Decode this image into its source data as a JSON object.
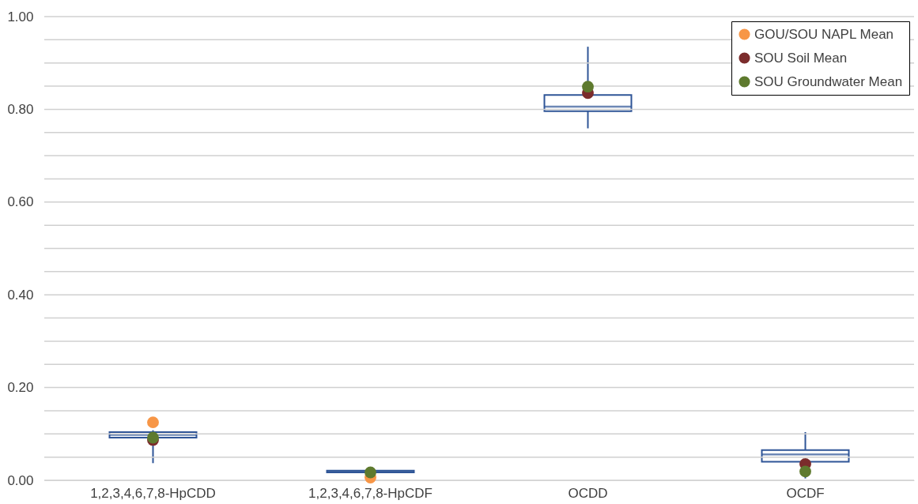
{
  "chart_data": {
    "type": "box",
    "categories": [
      "1,2,3,4,6,7,8-HpCDD",
      "1,2,3,4,6,7,8-HpCDF",
      "OCDD",
      "OCDF"
    ],
    "color": "#2f5597",
    "boxes": [
      {
        "low": 0.037,
        "q1": 0.092,
        "median": 0.098,
        "q3": 0.104,
        "high": 0.108
      },
      {
        "low": 0.016,
        "q1": 0.017,
        "median": 0.019,
        "q3": 0.021,
        "high": 0.022
      },
      {
        "low": 0.759,
        "q1": 0.796,
        "median": 0.806,
        "q3": 0.831,
        "high": 0.935
      },
      {
        "low": 0.004,
        "q1": 0.04,
        "median": 0.056,
        "q3": 0.065,
        "high": 0.104
      }
    ],
    "series": [
      {
        "name": "GOU/SOU NAPL Mean",
        "type": "scatter",
        "color": "#f79646",
        "x": [
          "1,2,3,4,6,7,8-HpCDD",
          "1,2,3,4,6,7,8-HpCDF",
          "OCDD",
          "OCDF"
        ],
        "values": [
          0.125,
          0.006,
          null,
          null
        ]
      },
      {
        "name": "SOU Soil Mean",
        "type": "scatter",
        "color": "#7b2c2c",
        "x": [
          "1,2,3,4,6,7,8-HpCDD",
          "1,2,3,4,6,7,8-HpCDF",
          "OCDD",
          "OCDF"
        ],
        "values": [
          0.087,
          null,
          0.835,
          0.035
        ]
      },
      {
        "name": "SOU Groundwater Mean",
        "type": "scatter",
        "color": "#5e7a2e",
        "x": [
          "1,2,3,4,6,7,8-HpCDD",
          "1,2,3,4,6,7,8-HpCDF",
          "OCDD",
          "OCDF"
        ],
        "values": [
          0.092,
          0.017,
          0.849,
          0.019
        ]
      }
    ],
    "ylim": [
      0,
      1
    ],
    "yticks": [
      {
        "value": 0,
        "label": "0.00"
      },
      {
        "value": 0.05,
        "label": null
      },
      {
        "value": 0.1,
        "label": null
      },
      {
        "value": 0.15,
        "label": null
      },
      {
        "value": 0.2,
        "label": "0.20"
      },
      {
        "value": 0.25,
        "label": null
      },
      {
        "value": 0.3,
        "label": null
      },
      {
        "value": 0.35,
        "label": null
      },
      {
        "value": 0.4,
        "label": "0.40"
      },
      {
        "value": 0.45,
        "label": null
      },
      {
        "value": 0.5,
        "label": null
      },
      {
        "value": 0.55,
        "label": null
      },
      {
        "value": 0.6,
        "label": "0.60"
      },
      {
        "value": 0.65,
        "label": null
      },
      {
        "value": 0.7,
        "label": null
      },
      {
        "value": 0.75,
        "label": null
      },
      {
        "value": 0.8,
        "label": "0.80"
      },
      {
        "value": 0.85,
        "label": null
      },
      {
        "value": 0.9,
        "label": null
      },
      {
        "value": 0.95,
        "label": null
      },
      {
        "value": 1,
        "label": "1.00"
      }
    ],
    "grid": "y",
    "legend": "top right",
    "marker": "circle"
  }
}
